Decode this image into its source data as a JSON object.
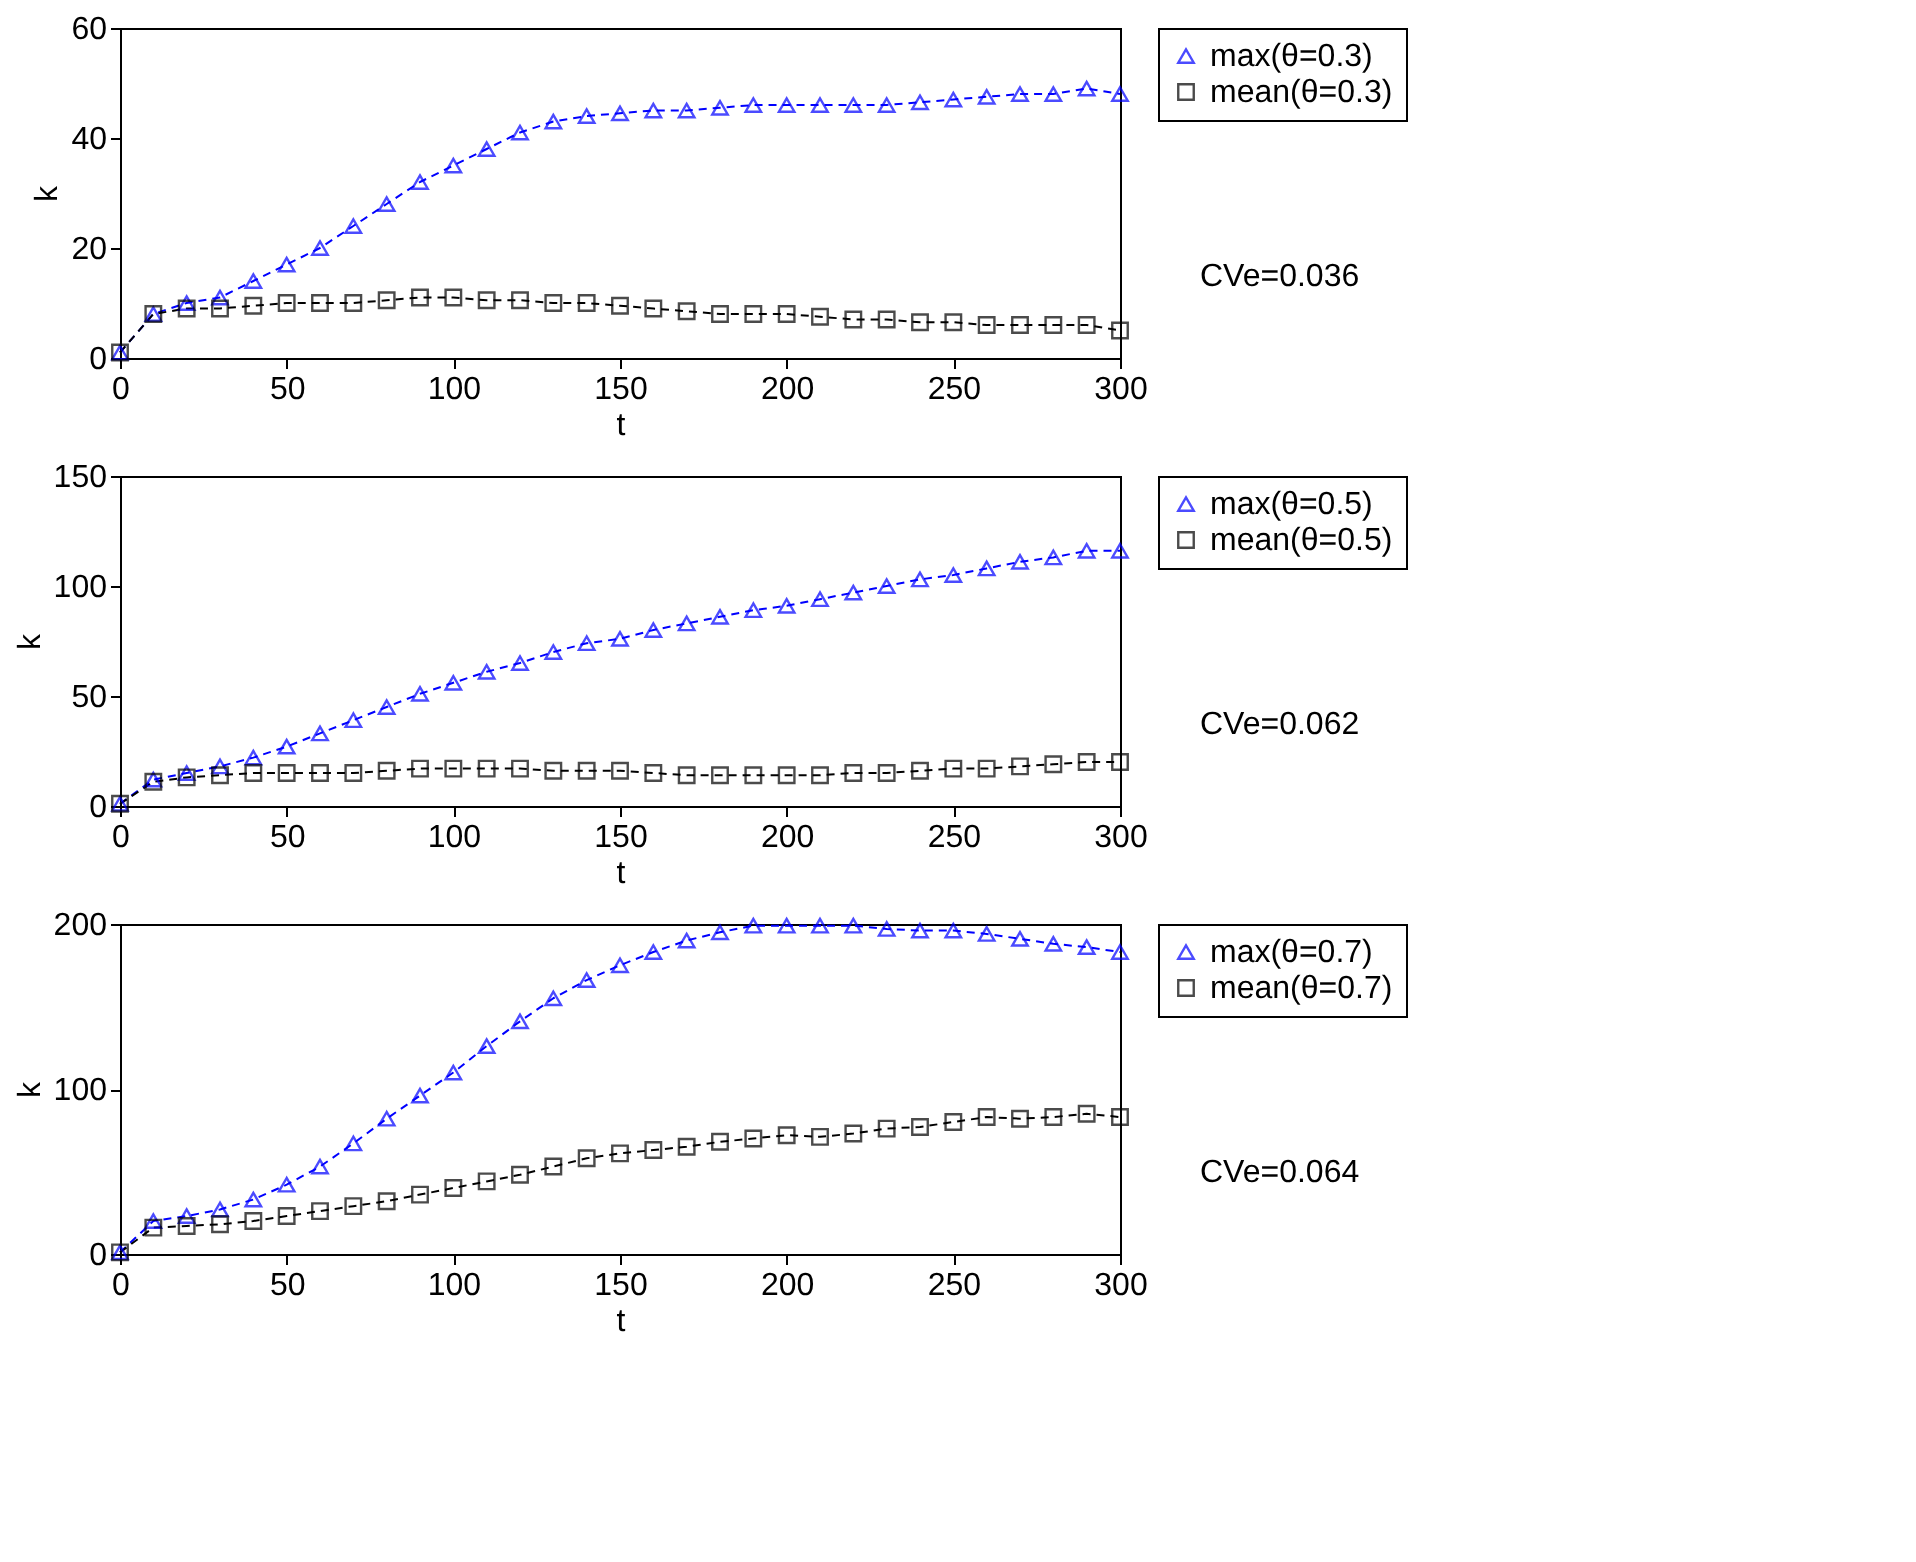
{
  "chart_data": [
    {
      "type": "line",
      "xlabel": "t",
      "ylabel": "k",
      "xlim": [
        0,
        300
      ],
      "xticks": [
        0,
        50,
        100,
        150,
        200,
        250,
        300
      ],
      "ylim": [
        0,
        60
      ],
      "yticks": [
        0,
        20,
        40,
        60
      ],
      "grid": false,
      "legend": "top right",
      "line_style": "dashed",
      "annotations": [
        "CVe=0.036"
      ],
      "x": [
        0,
        10,
        20,
        30,
        40,
        50,
        60,
        70,
        80,
        90,
        100,
        110,
        120,
        130,
        140,
        150,
        160,
        170,
        180,
        190,
        200,
        210,
        220,
        230,
        240,
        250,
        260,
        270,
        280,
        290,
        300
      ],
      "series": [
        {
          "name": "max(θ=0.3)",
          "color": "#0000ff",
          "marker": "triangle",
          "values": [
            1,
            8,
            10,
            11,
            14,
            17,
            20,
            24,
            28,
            32,
            35,
            38,
            41,
            43,
            44,
            44.5,
            45,
            45,
            45.5,
            46,
            46,
            46,
            46,
            46,
            46.5,
            47,
            47.5,
            48,
            48,
            49,
            48
          ]
        },
        {
          "name": "mean(θ=0.3)",
          "color": "#000000",
          "marker": "square",
          "values": [
            1,
            8,
            9,
            9,
            9.5,
            10,
            10,
            10,
            10.5,
            11,
            11,
            10.5,
            10.5,
            10,
            10,
            9.5,
            9,
            8.5,
            8,
            8,
            8,
            7.5,
            7,
            7,
            6.5,
            6.5,
            6,
            6,
            6,
            6,
            5
          ]
        }
      ]
    },
    {
      "type": "line",
      "xlabel": "t",
      "ylabel": "k",
      "xlim": [
        0,
        300
      ],
      "xticks": [
        0,
        50,
        100,
        150,
        200,
        250,
        300
      ],
      "ylim": [
        0,
        150
      ],
      "yticks": [
        0,
        50,
        100,
        150
      ],
      "grid": false,
      "legend": "top right",
      "line_style": "dashed",
      "annotations": [
        "CVe=0.062"
      ],
      "x": [
        0,
        10,
        20,
        30,
        40,
        50,
        60,
        70,
        80,
        90,
        100,
        110,
        120,
        130,
        140,
        150,
        160,
        170,
        180,
        190,
        200,
        210,
        220,
        230,
        240,
        250,
        260,
        270,
        280,
        290,
        300
      ],
      "series": [
        {
          "name": "max(θ=0.5)",
          "color": "#0000ff",
          "marker": "triangle",
          "values": [
            1,
            12,
            15,
            18,
            22,
            27,
            33,
            39,
            45,
            51,
            56,
            61,
            65,
            70,
            74,
            76,
            80,
            83,
            86,
            89,
            91,
            94,
            97,
            100,
            103,
            105,
            108,
            111,
            113,
            116,
            116
          ]
        },
        {
          "name": "mean(θ=0.5)",
          "color": "#000000",
          "marker": "square",
          "values": [
            1,
            11,
            13,
            14,
            15,
            15,
            15,
            15,
            16,
            17,
            17,
            17,
            17,
            16,
            16,
            16,
            15,
            14,
            14,
            14,
            14,
            14,
            15,
            15,
            16,
            17,
            17,
            18,
            19,
            20,
            20
          ]
        }
      ]
    },
    {
      "type": "line",
      "xlabel": "t",
      "ylabel": "k",
      "xlim": [
        0,
        300
      ],
      "xticks": [
        0,
        50,
        100,
        150,
        200,
        250,
        300
      ],
      "ylim": [
        0,
        200
      ],
      "yticks": [
        0,
        100,
        200
      ],
      "grid": false,
      "legend": "top right",
      "line_style": "dashed",
      "annotations": [
        "CVe=0.064"
      ],
      "x": [
        0,
        10,
        20,
        30,
        40,
        50,
        60,
        70,
        80,
        90,
        100,
        110,
        120,
        130,
        140,
        150,
        160,
        170,
        180,
        190,
        200,
        210,
        220,
        230,
        240,
        250,
        260,
        270,
        280,
        290,
        300
      ],
      "series": [
        {
          "name": "max(θ=0.7)",
          "color": "#0000ff",
          "marker": "triangle",
          "values": [
            1,
            20,
            23,
            27,
            33,
            42,
            53,
            67,
            82,
            96,
            110,
            126,
            141,
            155,
            166,
            175,
            183,
            190,
            195,
            199,
            199,
            199,
            199,
            197,
            196,
            196,
            194,
            191,
            188,
            186,
            183
          ]
        },
        {
          "name": "mean(θ=0.7)",
          "color": "#000000",
          "marker": "square",
          "values": [
            1,
            16,
            17,
            18,
            20,
            23,
            26,
            29,
            32,
            36,
            40,
            44,
            48,
            53,
            58,
            61,
            63,
            65,
            68,
            70,
            72,
            71,
            73,
            76,
            77,
            80,
            83,
            82,
            83,
            85,
            83
          ]
        }
      ]
    }
  ]
}
